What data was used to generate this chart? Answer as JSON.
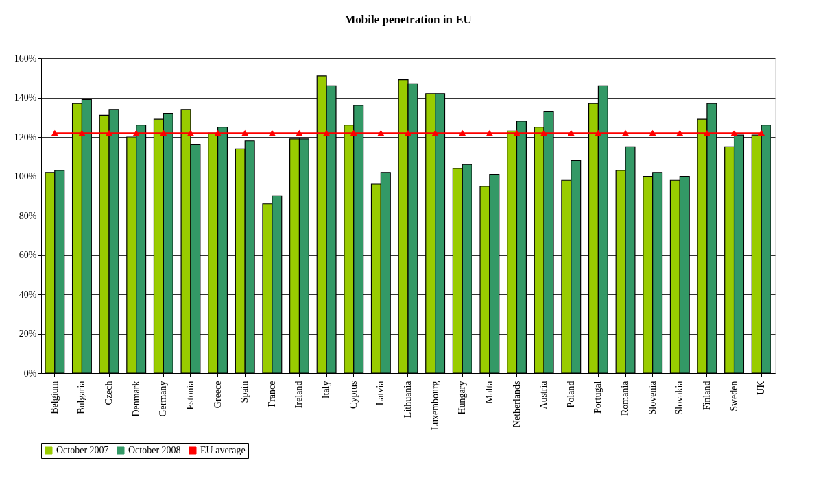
{
  "chart_data": {
    "type": "bar",
    "title": "Mobile penetration in EU",
    "categories": [
      "Belgium",
      "Bulgaria",
      "Czech",
      "Denmark",
      "Germany",
      "Estonia",
      "Greece",
      "Spain",
      "France",
      "Ireland",
      "Italy",
      "Cyprus",
      "Latvia",
      "Lithuania",
      "Luxembourg",
      "Hungary",
      "Malta",
      "Netherlands",
      "Austria",
      "Poland",
      "Portugal",
      "Romania",
      "Slovenia",
      "Slovakia",
      "Finland",
      "Sweden",
      "UK"
    ],
    "series": [
      {
        "name": "October 2007",
        "color": "#99cc00",
        "values": [
          102,
          137,
          131,
          120,
          129,
          134,
          122,
          114,
          86,
          119,
          151,
          126,
          96,
          149,
          142,
          104,
          95,
          123,
          125,
          98,
          137,
          103,
          100,
          98,
          129,
          115,
          121
        ]
      },
      {
        "name": "October 2008",
        "color": "#339966",
        "values": [
          103,
          139,
          134,
          126,
          132,
          116,
          125,
          118,
          90,
          119,
          146,
          136,
          102,
          147,
          142,
          106,
          101,
          128,
          133,
          108,
          146,
          115,
          102,
          100,
          137,
          121,
          126
        ]
      },
      {
        "name": "EU average",
        "type": "line",
        "color": "#ff0000",
        "marker": "triangle",
        "values": [
          122,
          122,
          122,
          122,
          122,
          122,
          122,
          122,
          122,
          122,
          122,
          122,
          122,
          122,
          122,
          122,
          122,
          122,
          122,
          122,
          122,
          122,
          122,
          122,
          122,
          122,
          122
        ]
      }
    ],
    "ylim": [
      0,
      160
    ],
    "yticks": [
      {
        "value": 0,
        "label": "0%"
      },
      {
        "value": 20,
        "label": "20%"
      },
      {
        "value": 40,
        "label": "40%"
      },
      {
        "value": 60,
        "label": "60%"
      },
      {
        "value": 80,
        "label": "80%"
      },
      {
        "value": 100,
        "label": "100%"
      },
      {
        "value": 120,
        "label": "120%"
      },
      {
        "value": 140,
        "label": "140%"
      },
      {
        "value": 160,
        "label": "160%"
      }
    ],
    "grid": "y",
    "legend": "bottom"
  }
}
